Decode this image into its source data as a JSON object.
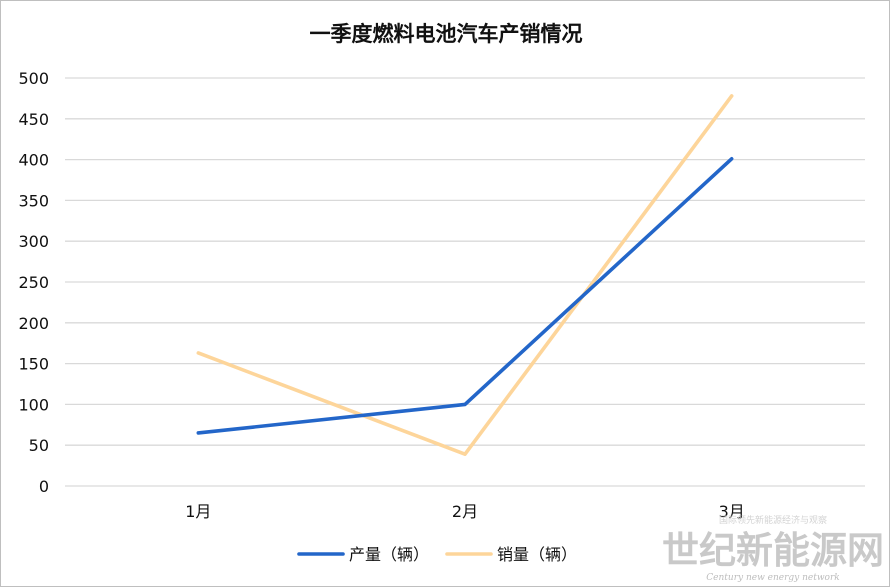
{
  "chart_data": {
    "type": "line",
    "title": "一季度燃料电池汽车产销情况",
    "categories": [
      "1月",
      "2月",
      "3月"
    ],
    "series": [
      {
        "name": "产量（辆）",
        "values": [
          65,
          100,
          401
        ],
        "color": "#2366c9"
      },
      {
        "name": "销量（辆）",
        "values": [
          163,
          39,
          478
        ],
        "color": "#fdd59a"
      }
    ],
    "ylim": [
      0,
      500
    ],
    "yticks": [
      0,
      50,
      100,
      150,
      200,
      250,
      300,
      350,
      400,
      450,
      500
    ],
    "grid": true,
    "legend_position": "bottom"
  },
  "watermark": {
    "main": "世纪新能源网",
    "sub": "Century new energy network",
    "tag": "国际领先新能源经济与观察"
  }
}
